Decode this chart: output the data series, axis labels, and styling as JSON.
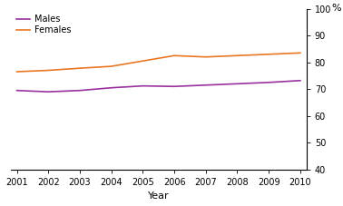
{
  "males": [
    69.5,
    69.0,
    69.5,
    70.5,
    71.2,
    71.0,
    71.5,
    72.0,
    72.5,
    73.2
  ],
  "females": [
    76.5,
    77.0,
    77.8,
    78.5,
    80.5,
    82.5,
    82.0,
    82.5,
    83.0,
    83.5
  ],
  "years": [
    2001,
    2002,
    2003,
    2004,
    2005,
    2006,
    2007,
    2008,
    2009,
    2010
  ],
  "male_color": "#9B30A0",
  "female_color": "#E87722",
  "ylim": [
    40,
    100
  ],
  "yticks": [
    40,
    50,
    60,
    70,
    80,
    90,
    100
  ],
  "xlim": [
    2001,
    2010
  ],
  "xticks": [
    2001,
    2002,
    2003,
    2004,
    2005,
    2006,
    2007,
    2008,
    2009,
    2010
  ],
  "xlabel": "Year",
  "ylabel": "%",
  "legend_males": "Males",
  "legend_females": "Females",
  "line_width": 1.2,
  "background_color": "#ffffff",
  "text_color": "#000000",
  "spine_color": "#000000",
  "tick_color": "#000000",
  "label_fontsize": 7,
  "xlabel_fontsize": 8,
  "ylabel_fontsize": 8
}
